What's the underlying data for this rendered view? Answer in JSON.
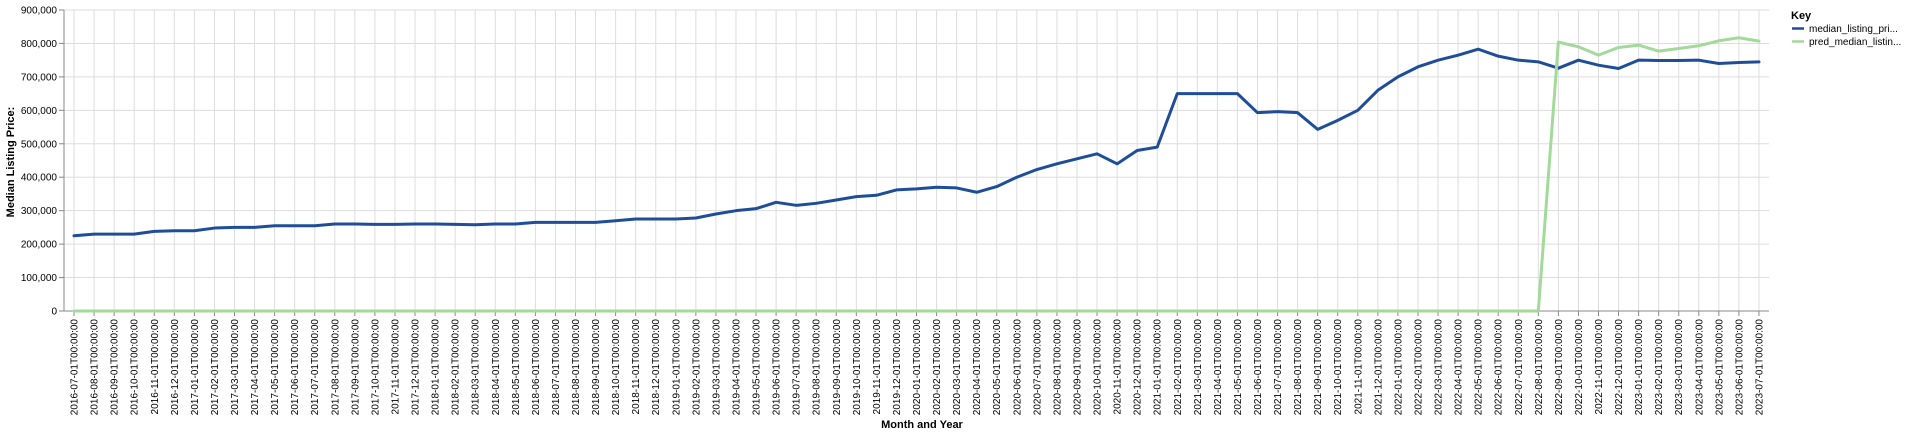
{
  "chart_data": {
    "type": "line",
    "xlabel": "Month and Year",
    "ylabel": "Median Listing Price:",
    "ylim": [
      0,
      900000
    ],
    "y_ticks": [
      "0",
      "100,000",
      "200,000",
      "300,000",
      "400,000",
      "500,000",
      "600,000",
      "700,000",
      "800,000",
      "900,000"
    ],
    "y_tick_values": [
      0,
      100000,
      200000,
      300000,
      400000,
      500000,
      600000,
      700000,
      800000,
      900000
    ],
    "grid": true,
    "legend": {
      "title": "Key",
      "placement": "top-right"
    },
    "x": [
      "2016-07-01T00:00:00",
      "2016-08-01T00:00:00",
      "2016-09-01T00:00:00",
      "2016-10-01T00:00:00",
      "2016-11-01T00:00:00",
      "2016-12-01T00:00:00",
      "2017-01-01T00:00:00",
      "2017-02-01T00:00:00",
      "2017-03-01T00:00:00",
      "2017-04-01T00:00:00",
      "2017-05-01T00:00:00",
      "2017-06-01T00:00:00",
      "2017-07-01T00:00:00",
      "2017-08-01T00:00:00",
      "2017-09-01T00:00:00",
      "2017-10-01T00:00:00",
      "2017-11-01T00:00:00",
      "2017-12-01T00:00:00",
      "2018-01-01T00:00:00",
      "2018-02-01T00:00:00",
      "2018-03-01T00:00:00",
      "2018-04-01T00:00:00",
      "2018-05-01T00:00:00",
      "2018-06-01T00:00:00",
      "2018-07-01T00:00:00",
      "2018-08-01T00:00:00",
      "2018-09-01T00:00:00",
      "2018-10-01T00:00:00",
      "2018-11-01T00:00:00",
      "2018-12-01T00:00:00",
      "2019-01-01T00:00:00",
      "2019-02-01T00:00:00",
      "2019-03-01T00:00:00",
      "2019-04-01T00:00:00",
      "2019-05-01T00:00:00",
      "2019-06-01T00:00:00",
      "2019-07-01T00:00:00",
      "2019-08-01T00:00:00",
      "2019-09-01T00:00:00",
      "2019-10-01T00:00:00",
      "2019-11-01T00:00:00",
      "2019-12-01T00:00:00",
      "2020-01-01T00:00:00",
      "2020-02-01T00:00:00",
      "2020-03-01T00:00:00",
      "2020-04-01T00:00:00",
      "2020-05-01T00:00:00",
      "2020-06-01T00:00:00",
      "2020-07-01T00:00:00",
      "2020-08-01T00:00:00",
      "2020-09-01T00:00:00",
      "2020-10-01T00:00:00",
      "2020-11-01T00:00:00",
      "2020-12-01T00:00:00",
      "2021-01-01T00:00:00",
      "2021-02-01T00:00:00",
      "2021-03-01T00:00:00",
      "2021-04-01T00:00:00",
      "2021-05-01T00:00:00",
      "2021-06-01T00:00:00",
      "2021-07-01T00:00:00",
      "2021-08-01T00:00:00",
      "2021-09-01T00:00:00",
      "2021-10-01T00:00:00",
      "2021-11-01T00:00:00",
      "2021-12-01T00:00:00",
      "2022-01-01T00:00:00",
      "2022-02-01T00:00:00",
      "2022-03-01T00:00:00",
      "2022-04-01T00:00:00",
      "2022-05-01T00:00:00",
      "2022-06-01T00:00:00",
      "2022-07-01T00:00:00",
      "2022-08-01T00:00:00",
      "2022-09-01T00:00:00",
      "2022-10-01T00:00:00",
      "2022-11-01T00:00:00",
      "2022-12-01T00:00:00",
      "2023-01-01T00:00:00",
      "2023-02-01T00:00:00",
      "2023-03-01T00:00:00",
      "2023-04-01T00:00:00",
      "2023-05-01T00:00:00",
      "2023-06-01T00:00:00",
      "2023-07-01T00:00:00"
    ],
    "series": [
      {
        "name": "median_listing_pri...",
        "color": "#1f4e99",
        "values": [
          225000,
          230000,
          230000,
          230000,
          238000,
          240000,
          240000,
          248000,
          250000,
          250000,
          255000,
          255000,
          255000,
          260000,
          260000,
          259000,
          259000,
          260000,
          260000,
          259000,
          258000,
          260000,
          260000,
          265000,
          265000,
          265000,
          265000,
          270000,
          275000,
          275000,
          275000,
          278000,
          290000,
          300000,
          306000,
          325000,
          316000,
          322000,
          332000,
          342000,
          346000,
          362000,
          365000,
          370000,
          368000,
          355000,
          372000,
          400000,
          423000,
          440000,
          455000,
          470000,
          440000,
          480000,
          490000,
          650000,
          650000,
          650000,
          650000,
          593000,
          596000,
          593000,
          543000,
          570000,
          600000,
          660000,
          700000,
          730000,
          750000,
          765000,
          783000,
          762000,
          750000,
          745000,
          726000,
          750000,
          735000,
          725000,
          750000,
          749000,
          749000,
          750000,
          740000,
          743000,
          745000
        ]
      },
      {
        "name": "pred_median_listin...",
        "color": "#a3d99a",
        "values": [
          0,
          0,
          0,
          0,
          0,
          0,
          0,
          0,
          0,
          0,
          0,
          0,
          0,
          0,
          0,
          0,
          0,
          0,
          0,
          0,
          0,
          0,
          0,
          0,
          0,
          0,
          0,
          0,
          0,
          0,
          0,
          0,
          0,
          0,
          0,
          0,
          0,
          0,
          0,
          0,
          0,
          0,
          0,
          0,
          0,
          0,
          0,
          0,
          0,
          0,
          0,
          0,
          0,
          0,
          0,
          0,
          0,
          0,
          0,
          0,
          0,
          0,
          0,
          0,
          0,
          0,
          0,
          0,
          0,
          0,
          0,
          0,
          0,
          0,
          804000,
          790000,
          765000,
          788000,
          795000,
          777000,
          785000,
          793000,
          808000,
          817000,
          807000
        ]
      }
    ]
  }
}
